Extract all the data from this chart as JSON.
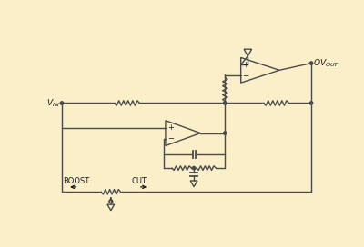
{
  "bg_color": "#faefc8",
  "line_color": "#4a4a4a",
  "text_color": "#1a1a1a",
  "fig_width": 4.0,
  "fig_height": 2.72,
  "dpi": 100
}
